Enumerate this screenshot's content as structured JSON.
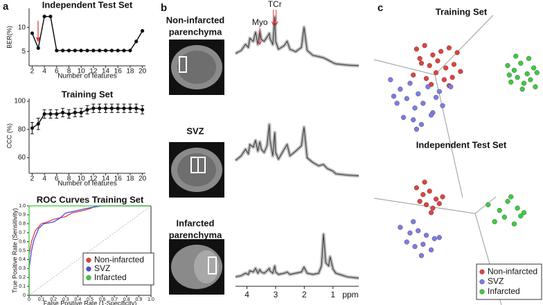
{
  "panel_labels": [
    "a",
    "b",
    "c"
  ],
  "chart_data": [
    {
      "type": "line",
      "title": "Independent Test Set",
      "xlabel": "Number of features",
      "ylabel": "BER(%)",
      "x": [
        2,
        3,
        4,
        5,
        6,
        7,
        8,
        9,
        10,
        11,
        12,
        13,
        14,
        15,
        16,
        17,
        18,
        19,
        20
      ],
      "values": [
        8.8,
        5.7,
        12.3,
        12.3,
        5.2,
        5.2,
        5.2,
        5.2,
        5.2,
        5.2,
        5.2,
        5.2,
        5.2,
        5.2,
        5.2,
        5.2,
        5.2,
        7.1,
        9.3
      ],
      "xlim": [
        1.5,
        20.5
      ],
      "xticks": [
        2,
        4,
        6,
        8,
        10,
        12,
        14,
        16,
        18,
        20
      ],
      "ylim": [
        2,
        14
      ],
      "yticks": [
        5,
        10
      ],
      "color": "#111111"
    },
    {
      "type": "line",
      "title": "Training Set",
      "xlabel": "Number of features",
      "ylabel": "CCC (%)",
      "x": [
        2,
        3,
        4,
        5,
        6,
        7,
        8,
        9,
        10,
        11,
        12,
        13,
        14,
        15,
        16,
        17,
        18,
        19,
        20
      ],
      "values": [
        81,
        84,
        91,
        91,
        91,
        92,
        91,
        92,
        92,
        94,
        95,
        95,
        95,
        95,
        95,
        95,
        95,
        95,
        94
      ],
      "errors": [
        4,
        4,
        3,
        3,
        3,
        3,
        3,
        3,
        3,
        3,
        3,
        3,
        3,
        3,
        3,
        3,
        3,
        3,
        3
      ],
      "xlim": [
        1.5,
        20.5
      ],
      "xticks": [
        2,
        4,
        6,
        8,
        10,
        12,
        14,
        16,
        18,
        20
      ],
      "ylim": [
        49,
        102
      ],
      "yticks": [
        60,
        80,
        100
      ],
      "color": "#111111"
    },
    {
      "type": "line",
      "title": "ROC Curves Training Set",
      "xlabel": "False Positive Rate (1-Specificity)",
      "ylabel": "True Positive Rate (Sensitivity)",
      "xlim": [
        0,
        1
      ],
      "ylim": [
        0,
        1
      ],
      "xticks": [
        0,
        0.1,
        0.2,
        0.3,
        0.4,
        0.5,
        0.6,
        0.7,
        0.8,
        0.9,
        {
          "value": 1,
          "label": "1.0"
        }
      ],
      "yticks": [
        0,
        0.1,
        0.2,
        0.3,
        0.4,
        0.5,
        0.6,
        0.7,
        0.8,
        0.9,
        {
          "value": 1,
          "label": "1.0"
        }
      ],
      "legend": "lower right",
      "series": [
        {
          "name": "Non-infarcted",
          "color": "#e0423f",
          "x": [
            0,
            0,
            0.02,
            0.05,
            0.1,
            0.15,
            0.2,
            0.3,
            0.35,
            0.45,
            0.5,
            0.55,
            1
          ],
          "values": [
            0,
            0.45,
            0.6,
            0.72,
            0.8,
            0.82,
            0.85,
            0.88,
            0.92,
            0.95,
            0.97,
            1,
            1
          ]
        },
        {
          "name": "SVZ",
          "color": "#4a4ae0",
          "x": [
            0,
            0,
            0.02,
            0.04,
            0.08,
            0.12,
            0.2,
            0.25,
            0.3,
            0.4,
            0.5,
            0.6,
            1
          ],
          "values": [
            0,
            0.3,
            0.5,
            0.62,
            0.75,
            0.8,
            0.82,
            0.86,
            0.92,
            0.95,
            0.98,
            1,
            1
          ]
        },
        {
          "name": "Infarcted",
          "color": "#3ccc3c",
          "x": [
            0,
            0,
            1
          ],
          "values": [
            0,
            1,
            1
          ]
        }
      ]
    },
    {
      "type": "spectrum",
      "title_lines": [
        "Non-infarcted",
        "parenchyma"
      ],
      "xlim": [
        4.4,
        0.1
      ],
      "ylim": [
        0,
        100
      ],
      "annotations": [
        {
          "text": "Myo",
          "x": 3.55
        },
        {
          "text": "TCr",
          "x": 3.03
        }
      ],
      "x": [
        4.4,
        4.2,
        4.05,
        3.95,
        3.9,
        3.78,
        3.7,
        3.62,
        3.55,
        3.5,
        3.4,
        3.3,
        3.22,
        3.2,
        3.1,
        3.03,
        3.0,
        2.9,
        2.7,
        2.6,
        2.5,
        2.3,
        2.1,
        2.01,
        1.9,
        1.7,
        1.5,
        1.33,
        1.2,
        1.0,
        0.9,
        0.5,
        0.1
      ],
      "values": [
        35,
        40,
        50,
        45,
        60,
        55,
        70,
        50,
        72,
        58,
        55,
        62,
        68,
        60,
        50,
        95,
        55,
        42,
        48,
        55,
        42,
        38,
        45,
        78,
        40,
        32,
        30,
        28,
        25,
        20,
        18,
        16,
        15
      ]
    },
    {
      "type": "spectrum",
      "title_lines": [
        "SVZ"
      ],
      "xlim": [
        4.4,
        0.1
      ],
      "ylim": [
        0,
        100
      ],
      "x": [
        4.4,
        4.2,
        4.05,
        3.95,
        3.9,
        3.78,
        3.7,
        3.62,
        3.55,
        3.5,
        3.4,
        3.3,
        3.22,
        3.2,
        3.1,
        3.03,
        3.0,
        2.9,
        2.7,
        2.6,
        2.5,
        2.3,
        2.1,
        2.01,
        1.9,
        1.7,
        1.5,
        1.33,
        1.2,
        1.0,
        0.9,
        0.5,
        0.1
      ],
      "values": [
        38,
        45,
        55,
        48,
        62,
        58,
        68,
        52,
        66,
        55,
        50,
        60,
        92,
        70,
        45,
        80,
        50,
        40,
        55,
        62,
        45,
        52,
        60,
        88,
        42,
        35,
        30,
        32,
        26,
        22,
        18,
        16,
        15
      ]
    },
    {
      "type": "spectrum",
      "title_lines": [
        "Infarcted",
        "parenchyma"
      ],
      "xlim": [
        4.4,
        0.1
      ],
      "ylim": [
        0,
        100
      ],
      "xlabel": "ppm",
      "xticks": [
        4,
        3,
        2,
        1
      ],
      "x": [
        4.4,
        4.2,
        4.05,
        3.95,
        3.9,
        3.78,
        3.7,
        3.62,
        3.55,
        3.5,
        3.4,
        3.3,
        3.22,
        3.2,
        3.1,
        3.03,
        3.0,
        2.9,
        2.7,
        2.6,
        2.5,
        2.3,
        2.1,
        2.01,
        1.9,
        1.7,
        1.5,
        1.4,
        1.33,
        1.25,
        1.15,
        1.1,
        1.0,
        0.9,
        0.5,
        0.1
      ],
      "values": [
        12,
        14,
        18,
        16,
        22,
        20,
        26,
        18,
        24,
        20,
        18,
        22,
        26,
        22,
        18,
        30,
        20,
        16,
        18,
        20,
        16,
        18,
        20,
        28,
        18,
        16,
        18,
        30,
        82,
        35,
        30,
        45,
        25,
        18,
        12,
        10
      ]
    },
    {
      "type": "scatter",
      "title": "Training Set",
      "xlim": [
        0,
        100
      ],
      "ylim": [
        0,
        100
      ],
      "series": [
        {
          "color": "#e0423f",
          "x": [
            24,
            29,
            34,
            39,
            44,
            49,
            27,
            32,
            37,
            42,
            47,
            22,
            30,
            36,
            41,
            46,
            51,
            33,
            26,
            44
          ],
          "values": [
            76,
            79,
            71,
            74,
            77,
            73,
            64,
            62,
            66,
            60,
            63,
            54,
            51,
            56,
            50,
            52,
            57,
            46,
            68,
            45
          ]
        },
        {
          "color": "#7b7bea",
          "x": [
            8,
            14,
            20,
            25,
            31,
            36,
            12,
            18,
            23,
            28,
            34,
            40,
            16,
            22,
            27,
            33,
            10,
            38,
            45,
            24
          ],
          "values": [
            50,
            42,
            47,
            38,
            44,
            35,
            30,
            34,
            26,
            30,
            22,
            28,
            18,
            16,
            12,
            20,
            36,
            40,
            44,
            8
          ]
        },
        {
          "color": "#3ccc3c",
          "x": [
            80,
            84,
            88,
            92,
            96,
            82,
            86,
            90,
            94,
            98,
            85,
            89,
            93,
            81,
            97
          ],
          "values": [
            62,
            58,
            64,
            55,
            60,
            48,
            52,
            47,
            50,
            56,
            70,
            42,
            68,
            54,
            44
          ]
        }
      ]
    },
    {
      "type": "scatter",
      "title": "Independent Test Set",
      "xlim": [
        0,
        100
      ],
      "ylim": [
        0,
        100
      ],
      "legend": "lower right",
      "series": [
        {
          "name": "Non-infarcted",
          "color": "#e0423f",
          "x": [
            24,
            28,
            32,
            36,
            40,
            30,
            34,
            26,
            38,
            33,
            29
          ],
          "values": [
            70,
            64,
            67,
            60,
            62,
            55,
            52,
            58,
            56,
            48,
            75
          ]
        },
        {
          "name": "SVZ",
          "color": "#7b7bea",
          "x": [
            14,
            20,
            25,
            30,
            35,
            18,
            23,
            28,
            33,
            38,
            27,
            22
          ],
          "values": [
            35,
            30,
            32,
            28,
            25,
            22,
            18,
            20,
            15,
            26,
            10,
            40
          ]
        },
        {
          "name": "Infarcted",
          "color": "#3ccc3c",
          "x": [
            68,
            75,
            80,
            86,
            90,
            72,
            78,
            84,
            88,
            82
          ],
          "values": [
            55,
            50,
            58,
            52,
            48,
            40,
            44,
            38,
            45,
            62
          ]
        }
      ]
    }
  ]
}
